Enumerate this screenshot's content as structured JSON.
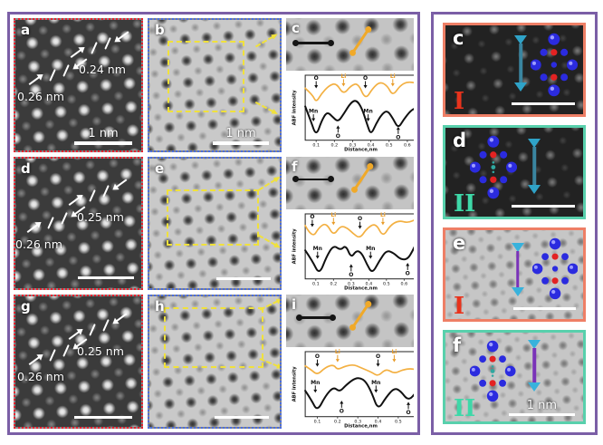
{
  "figure": {
    "left": {
      "panels": {
        "a": {
          "label": "a",
          "meas1": "0.26 nm",
          "meas2": "0.24 nm",
          "scalebar": "1 nm"
        },
        "b": {
          "label": "b",
          "scalebar": "1 nm"
        },
        "c": {
          "label": "c"
        },
        "d": {
          "label": "d",
          "meas1": "0.26 nm",
          "meas2": "0.25 nm"
        },
        "e": {
          "label": "e"
        },
        "f": {
          "label": "f"
        },
        "g": {
          "label": "g",
          "meas1": "0.26 nm",
          "meas2": "0.25 nm"
        },
        "h": {
          "label": "h"
        },
        "i": {
          "label": "i"
        }
      }
    },
    "right": {
      "panels": {
        "c": {
          "label": "c",
          "numeral": "I"
        },
        "d": {
          "label": "d",
          "numeral": "II"
        },
        "e": {
          "label": "e",
          "numeral": "I"
        },
        "f": {
          "label": "f",
          "numeral": "II",
          "scalebar": "1 nm"
        }
      }
    },
    "colors": {
      "frame_purple": "#7b5fa6",
      "haadf_border_red": "#e8202e",
      "abf_border_blue": "#4a6de0",
      "roi_yellow": "#f0e13c",
      "panel_border_salmon": "#ee7f66",
      "panel_border_teal": "#58d0ac",
      "profile_yellow": "#f3b042",
      "profile_black": "#111111",
      "atom_blue": "#2b2bdf",
      "atom_red": "#e32222",
      "atom_teal": "#2fa8a0",
      "arrow_teal": "#3a85a0",
      "arrow_purple": "#7a32b8",
      "arrowhead_cyan": "#35aed8"
    }
  },
  "chart_data": [
    {
      "type": "line",
      "panel": "c",
      "xlabel": "Distance,nm",
      "ylabel": "ABF intensity",
      "xlim": [
        0.04,
        0.65
      ],
      "x_ticks": [
        0.1,
        0.2,
        0.3,
        0.4,
        0.5,
        0.6
      ],
      "series": [
        {
          "name": "Li-O column profile (yellow)",
          "color": "#f3b042",
          "width": 1.7,
          "points": [
            [
              0.04,
              0.8
            ],
            [
              0.08,
              0.7
            ],
            [
              0.1,
              0.58
            ],
            [
              0.13,
              0.72
            ],
            [
              0.17,
              0.84
            ],
            [
              0.21,
              0.88
            ],
            [
              0.25,
              0.7
            ],
            [
              0.29,
              0.84
            ],
            [
              0.33,
              0.88
            ],
            [
              0.37,
              0.62
            ],
            [
              0.41,
              0.8
            ],
            [
              0.45,
              0.9
            ],
            [
              0.49,
              0.84
            ],
            [
              0.52,
              0.68
            ],
            [
              0.56,
              0.84
            ],
            [
              0.6,
              0.9
            ],
            [
              0.65,
              0.88
            ]
          ]
        },
        {
          "name": "Mn-O column profile (black)",
          "color": "#111111",
          "width": 2,
          "points": [
            [
              0.04,
              0.52
            ],
            [
              0.07,
              0.3
            ],
            [
              0.1,
              0.06
            ],
            [
              0.13,
              0.3
            ],
            [
              0.16,
              0.44
            ],
            [
              0.19,
              0.36
            ],
            [
              0.22,
              0.28
            ],
            [
              0.25,
              0.4
            ],
            [
              0.29,
              0.58
            ],
            [
              0.32,
              0.62
            ],
            [
              0.35,
              0.5
            ],
            [
              0.38,
              0.24
            ],
            [
              0.4,
              0.08
            ],
            [
              0.43,
              0.26
            ],
            [
              0.46,
              0.4
            ],
            [
              0.49,
              0.46
            ],
            [
              0.52,
              0.34
            ],
            [
              0.55,
              0.18
            ],
            [
              0.58,
              0.32
            ],
            [
              0.62,
              0.46
            ],
            [
              0.65,
              0.5
            ]
          ]
        }
      ],
      "annotations": [
        {
          "label": "O",
          "color": "#111111",
          "x": 0.1,
          "ty": 0.93,
          "dir": "down"
        },
        {
          "label": "Li",
          "color": "#e89b28",
          "x": 0.25,
          "ty": 0.96,
          "dir": "down"
        },
        {
          "label": "O",
          "color": "#111111",
          "x": 0.37,
          "ty": 0.93,
          "dir": "down"
        },
        {
          "label": "Li",
          "color": "#e89b28",
          "x": 0.52,
          "ty": 0.96,
          "dir": "down"
        },
        {
          "label": "Mn",
          "color": "#111111",
          "x": 0.085,
          "ty": 0.42,
          "dir": "down"
        },
        {
          "label": "Mn",
          "color": "#111111",
          "x": 0.385,
          "ty": 0.42,
          "dir": "down"
        },
        {
          "label": "O",
          "color": "#111111",
          "x": 0.22,
          "ty": 0.04,
          "dir": "up"
        },
        {
          "label": "O",
          "color": "#111111",
          "x": 0.55,
          "ty": 0.02,
          "dir": "up"
        }
      ]
    },
    {
      "type": "line",
      "panel": "f",
      "xlabel": "Distance,nm",
      "ylabel": "ABF intensity",
      "xlim": [
        0.04,
        0.67
      ],
      "x_ticks": [
        0.1,
        0.2,
        0.3,
        0.4,
        0.5,
        0.6
      ],
      "series": [
        {
          "name": "Li-O column profile (yellow)",
          "color": "#f3b042",
          "width": 1.7,
          "points": [
            [
              0.04,
              0.82
            ],
            [
              0.08,
              0.62
            ],
            [
              0.12,
              0.8
            ],
            [
              0.16,
              0.86
            ],
            [
              0.2,
              0.66
            ],
            [
              0.24,
              0.82
            ],
            [
              0.28,
              0.78
            ],
            [
              0.31,
              0.7
            ],
            [
              0.35,
              0.62
            ],
            [
              0.39,
              0.78
            ],
            [
              0.44,
              0.86
            ],
            [
              0.48,
              0.64
            ],
            [
              0.52,
              0.82
            ],
            [
              0.57,
              0.9
            ],
            [
              0.62,
              0.86
            ],
            [
              0.67,
              0.92
            ]
          ]
        },
        {
          "name": "Mn-O column profile (black)",
          "color": "#111111",
          "width": 2,
          "points": [
            [
              0.04,
              0.44
            ],
            [
              0.08,
              0.28
            ],
            [
              0.12,
              0.06
            ],
            [
              0.16,
              0.34
            ],
            [
              0.2,
              0.52
            ],
            [
              0.24,
              0.44
            ],
            [
              0.27,
              0.52
            ],
            [
              0.3,
              0.32
            ],
            [
              0.33,
              0.44
            ],
            [
              0.36,
              0.4
            ],
            [
              0.39,
              0.22
            ],
            [
              0.42,
              0.08
            ],
            [
              0.46,
              0.28
            ],
            [
              0.5,
              0.44
            ],
            [
              0.54,
              0.4
            ],
            [
              0.58,
              0.3
            ],
            [
              0.62,
              0.3
            ],
            [
              0.65,
              0.44
            ],
            [
              0.67,
              0.56
            ]
          ]
        }
      ],
      "annotations": [
        {
          "label": "O",
          "color": "#111111",
          "x": 0.08,
          "ty": 0.93,
          "dir": "down"
        },
        {
          "label": "Li",
          "color": "#e89b28",
          "x": 0.2,
          "ty": 0.96,
          "dir": "down"
        },
        {
          "label": "O",
          "color": "#111111",
          "x": 0.35,
          "ty": 0.9,
          "dir": "down"
        },
        {
          "label": "Li",
          "color": "#e89b28",
          "x": 0.48,
          "ty": 0.96,
          "dir": "down"
        },
        {
          "label": "Mn",
          "color": "#111111",
          "x": 0.11,
          "ty": 0.44,
          "dir": "down"
        },
        {
          "label": "Mn",
          "color": "#111111",
          "x": 0.41,
          "ty": 0.44,
          "dir": "down"
        },
        {
          "label": "O",
          "color": "#111111",
          "x": 0.3,
          "ty": 0.04,
          "dir": "up"
        },
        {
          "label": "O",
          "color": "#111111",
          "x": 0.62,
          "ty": 0.06,
          "dir": "up"
        }
      ]
    },
    {
      "type": "line",
      "panel": "i",
      "xlabel": "Distance,nm",
      "ylabel": "ABF intensity",
      "xlim": [
        0.04,
        0.59
      ],
      "x_ticks": [
        0.1,
        0.2,
        0.3,
        0.4,
        0.5
      ],
      "series": [
        {
          "name": "Li-O column profile (yellow)",
          "color": "#f3b042",
          "width": 1.7,
          "points": [
            [
              0.04,
              0.78
            ],
            [
              0.07,
              0.72
            ],
            [
              0.1,
              0.64
            ],
            [
              0.14,
              0.76
            ],
            [
              0.18,
              0.8
            ],
            [
              0.2,
              0.72
            ],
            [
              0.24,
              0.78
            ],
            [
              0.28,
              0.8
            ],
            [
              0.31,
              0.76
            ],
            [
              0.34,
              0.72
            ],
            [
              0.37,
              0.68
            ],
            [
              0.4,
              0.62
            ],
            [
              0.44,
              0.74
            ],
            [
              0.48,
              0.66
            ],
            [
              0.52,
              0.72
            ],
            [
              0.56,
              0.74
            ],
            [
              0.59,
              0.72
            ]
          ]
        },
        {
          "name": "Mn-O column profile (black)",
          "color": "#111111",
          "width": 2,
          "points": [
            [
              0.04,
              0.4
            ],
            [
              0.07,
              0.26
            ],
            [
              0.1,
              0.08
            ],
            [
              0.14,
              0.32
            ],
            [
              0.18,
              0.46
            ],
            [
              0.21,
              0.38
            ],
            [
              0.24,
              0.48
            ],
            [
              0.28,
              0.58
            ],
            [
              0.31,
              0.6
            ],
            [
              0.34,
              0.54
            ],
            [
              0.37,
              0.36
            ],
            [
              0.4,
              0.1
            ],
            [
              0.44,
              0.3
            ],
            [
              0.48,
              0.44
            ],
            [
              0.51,
              0.4
            ],
            [
              0.55,
              0.24
            ],
            [
              0.59,
              0.38
            ]
          ]
        }
      ],
      "annotations": [
        {
          "label": "O",
          "color": "#111111",
          "x": 0.1,
          "ty": 0.9,
          "dir": "down"
        },
        {
          "label": "Li",
          "color": "#e89b28",
          "x": 0.2,
          "ty": 0.97,
          "dir": "down"
        },
        {
          "label": "O",
          "color": "#111111",
          "x": 0.4,
          "ty": 0.9,
          "dir": "down"
        },
        {
          "label": "Li",
          "color": "#e89b28",
          "x": 0.48,
          "ty": 0.97,
          "dir": "down"
        },
        {
          "label": "Mn",
          "color": "#111111",
          "x": 0.09,
          "ty": 0.5,
          "dir": "down"
        },
        {
          "label": "Mn",
          "color": "#111111",
          "x": 0.39,
          "ty": 0.5,
          "dir": "down"
        },
        {
          "label": "O",
          "color": "#111111",
          "x": 0.22,
          "ty": 0.06,
          "dir": "up"
        },
        {
          "label": "O",
          "color": "#111111",
          "x": 0.55,
          "ty": 0.04,
          "dir": "up"
        }
      ]
    }
  ]
}
